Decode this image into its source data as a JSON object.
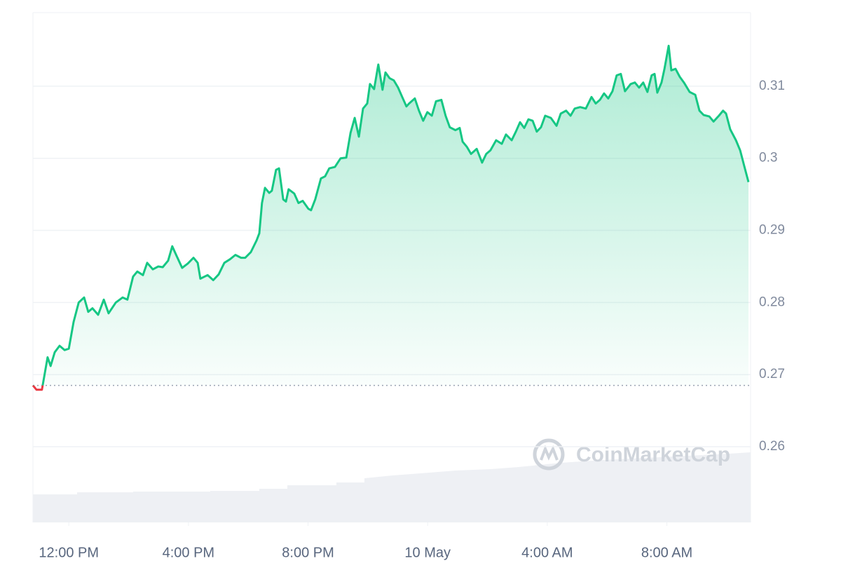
{
  "chart_data": {
    "type": "line",
    "watermark": "CoinMarketCap",
    "color": "#16c784",
    "down_color": "#ea3943",
    "baseline": 0.2685,
    "xlim": [
      10.8,
      34.8
    ],
    "xticks": [
      {
        "value": 12,
        "label": "12:00 PM"
      },
      {
        "value": 16,
        "label": "4:00 PM"
      },
      {
        "value": 20,
        "label": "8:00 PM"
      },
      {
        "value": 24,
        "label": "10 May"
      },
      {
        "value": 28,
        "label": "4:00 AM"
      },
      {
        "value": 32,
        "label": "8:00 AM"
      }
    ],
    "ylim": [
      0.2495,
      0.3202
    ],
    "yticks": [
      0.26,
      0.27,
      0.28,
      0.29,
      0.3,
      0.31
    ],
    "y_axis_side": "right",
    "grid": true,
    "x": [
      10.8,
      10.92,
      11.1,
      11.29,
      11.39,
      11.53,
      11.69,
      11.86,
      12,
      12.16,
      12.33,
      12.51,
      12.65,
      12.79,
      12.98,
      13.17,
      13.33,
      13.57,
      13.8,
      13.96,
      14.15,
      14.29,
      14.48,
      14.62,
      14.81,
      14.99,
      15.14,
      15.32,
      15.46,
      15.6,
      15.79,
      15.98,
      16.17,
      16.31,
      16.4,
      16.64,
      16.83,
      17.01,
      17.2,
      17.39,
      17.57,
      17.76,
      17.9,
      18.09,
      18.28,
      18.37,
      18.46,
      18.56,
      18.7,
      18.79,
      18.93,
      19.03,
      19.17,
      19.26,
      19.35,
      19.54,
      19.68,
      19.82,
      20.01,
      20.1,
      20.24,
      20.43,
      20.57,
      20.71,
      20.9,
      21.09,
      21.28,
      21.42,
      21.56,
      21.7,
      21.84,
      21.98,
      22.07,
      22.21,
      22.35,
      22.49,
      22.59,
      22.73,
      22.87,
      23.01,
      23.15,
      23.29,
      23.38,
      23.57,
      23.71,
      23.85,
      23.99,
      24.14,
      24.28,
      24.46,
      24.6,
      24.74,
      24.93,
      25.07,
      25.17,
      25.31,
      25.45,
      25.64,
      25.82,
      25.96,
      26.1,
      26.29,
      26.48,
      26.62,
      26.81,
      26.95,
      27.09,
      27.23,
      27.37,
      27.51,
      27.65,
      27.79,
      27.93,
      28.12,
      28.31,
      28.45,
      28.63,
      28.78,
      28.92,
      29.1,
      29.29,
      29.48,
      29.62,
      29.76,
      29.9,
      30.04,
      30.18,
      30.32,
      30.46,
      30.6,
      30.79,
      30.93,
      31.07,
      31.21,
      31.35,
      31.49,
      31.59,
      31.68,
      31.82,
      31.92,
      32.06,
      32.15,
      32.29,
      32.43,
      32.57,
      32.76,
      32.95,
      33.09,
      33.23,
      33.42,
      33.56,
      33.74,
      33.88,
      33.98,
      34.12,
      34.31,
      34.45,
      34.59,
      34.73
    ],
    "values": [
      0.2685,
      0.2679,
      0.2679,
      0.2724,
      0.2712,
      0.2731,
      0.274,
      0.2734,
      0.2736,
      0.2773,
      0.28,
      0.2807,
      0.2787,
      0.2792,
      0.2783,
      0.2804,
      0.2785,
      0.28,
      0.2807,
      0.2804,
      0.2836,
      0.2843,
      0.2838,
      0.2855,
      0.2846,
      0.285,
      0.2849,
      0.2858,
      0.2878,
      0.2865,
      0.2848,
      0.2854,
      0.2862,
      0.2855,
      0.2833,
      0.2838,
      0.2831,
      0.2839,
      0.2855,
      0.286,
      0.2866,
      0.2862,
      0.2862,
      0.287,
      0.2886,
      0.2896,
      0.2938,
      0.2959,
      0.2952,
      0.2955,
      0.2984,
      0.2986,
      0.2943,
      0.294,
      0.2957,
      0.2951,
      0.2938,
      0.2941,
      0.293,
      0.2928,
      0.2943,
      0.2972,
      0.2975,
      0.2986,
      0.2988,
      0.3,
      0.3001,
      0.3035,
      0.3056,
      0.303,
      0.3069,
      0.3076,
      0.3103,
      0.3096,
      0.313,
      0.3095,
      0.3119,
      0.3111,
      0.3108,
      0.3098,
      0.3085,
      0.3072,
      0.3076,
      0.3083,
      0.3066,
      0.3052,
      0.3064,
      0.3059,
      0.3079,
      0.3081,
      0.3059,
      0.3043,
      0.3039,
      0.3042,
      0.3023,
      0.3016,
      0.3006,
      0.3013,
      0.2994,
      0.3006,
      0.3011,
      0.3025,
      0.302,
      0.3033,
      0.3025,
      0.3037,
      0.305,
      0.3042,
      0.3054,
      0.3052,
      0.3037,
      0.3043,
      0.3059,
      0.3056,
      0.3045,
      0.3062,
      0.3066,
      0.3059,
      0.3069,
      0.3071,
      0.3069,
      0.3085,
      0.3076,
      0.3081,
      0.309,
      0.3083,
      0.3093,
      0.3115,
      0.3117,
      0.3093,
      0.3103,
      0.3105,
      0.3098,
      0.3105,
      0.3092,
      0.3115,
      0.3117,
      0.3091,
      0.3105,
      0.3124,
      0.3156,
      0.3122,
      0.3124,
      0.3113,
      0.3105,
      0.3092,
      0.3088,
      0.3066,
      0.306,
      0.3058,
      0.3051,
      0.3059,
      0.3066,
      0.3062,
      0.304,
      0.3025,
      0.3011,
      0.2989,
      0.2967
    ]
  }
}
